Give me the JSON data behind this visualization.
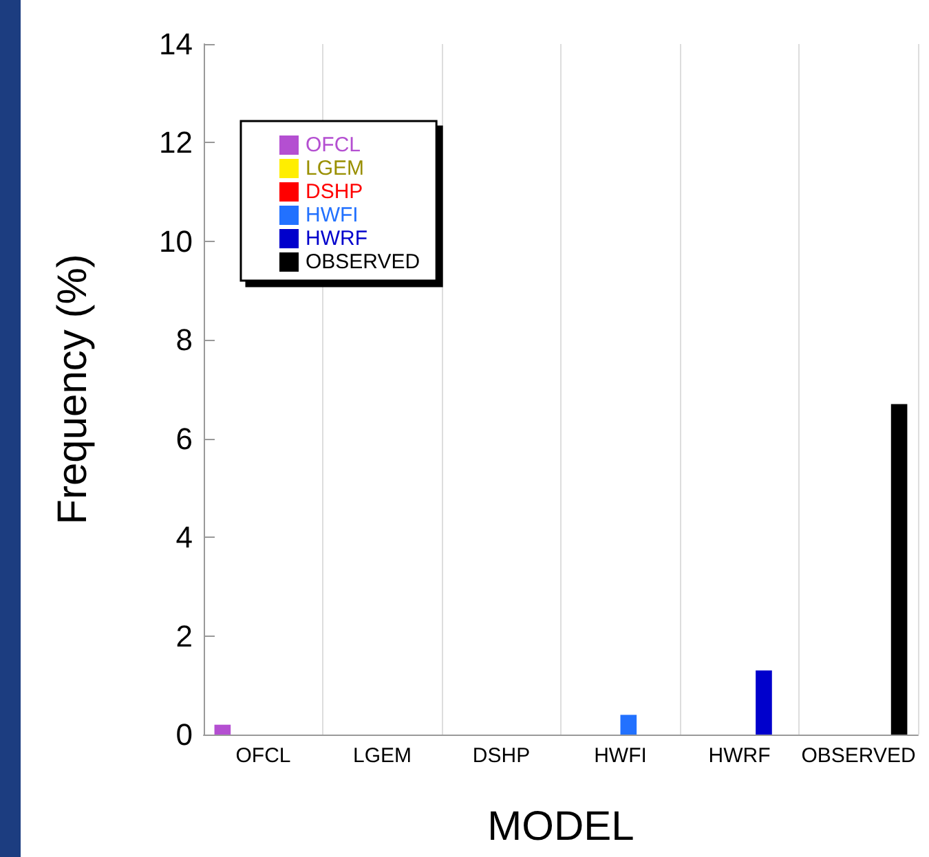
{
  "chart_data": {
    "type": "bar",
    "xlabel": "MODEL",
    "ylabel": "Frequency (%)",
    "categories": [
      "OFCL",
      "LGEM",
      "DSHP",
      "HWFI",
      "HWRF",
      "OBSERVED"
    ],
    "series": [
      {
        "name": "OFCL",
        "color": "#b44fd1",
        "values": [
          0.2,
          null,
          null,
          null,
          null,
          null
        ]
      },
      {
        "name": "LGEM",
        "color": "#ffee00",
        "values": [
          null,
          0,
          null,
          null,
          null,
          null
        ]
      },
      {
        "name": "DSHP",
        "color": "#ff0000",
        "values": [
          null,
          null,
          0,
          null,
          null,
          null
        ]
      },
      {
        "name": "HWFI",
        "color": "#2271ff",
        "values": [
          null,
          null,
          null,
          0.4,
          null,
          null
        ]
      },
      {
        "name": "HWRF",
        "color": "#0000cc",
        "values": [
          null,
          null,
          null,
          null,
          1.3,
          null
        ]
      },
      {
        "name": "OBSERVED",
        "color": "#000000",
        "values": [
          null,
          null,
          null,
          null,
          null,
          6.7
        ]
      }
    ],
    "ylim": [
      0,
      14
    ],
    "yticks": [
      0,
      2,
      4,
      6,
      8,
      10,
      12,
      14
    ],
    "grid": "x",
    "legend": "top left"
  }
}
